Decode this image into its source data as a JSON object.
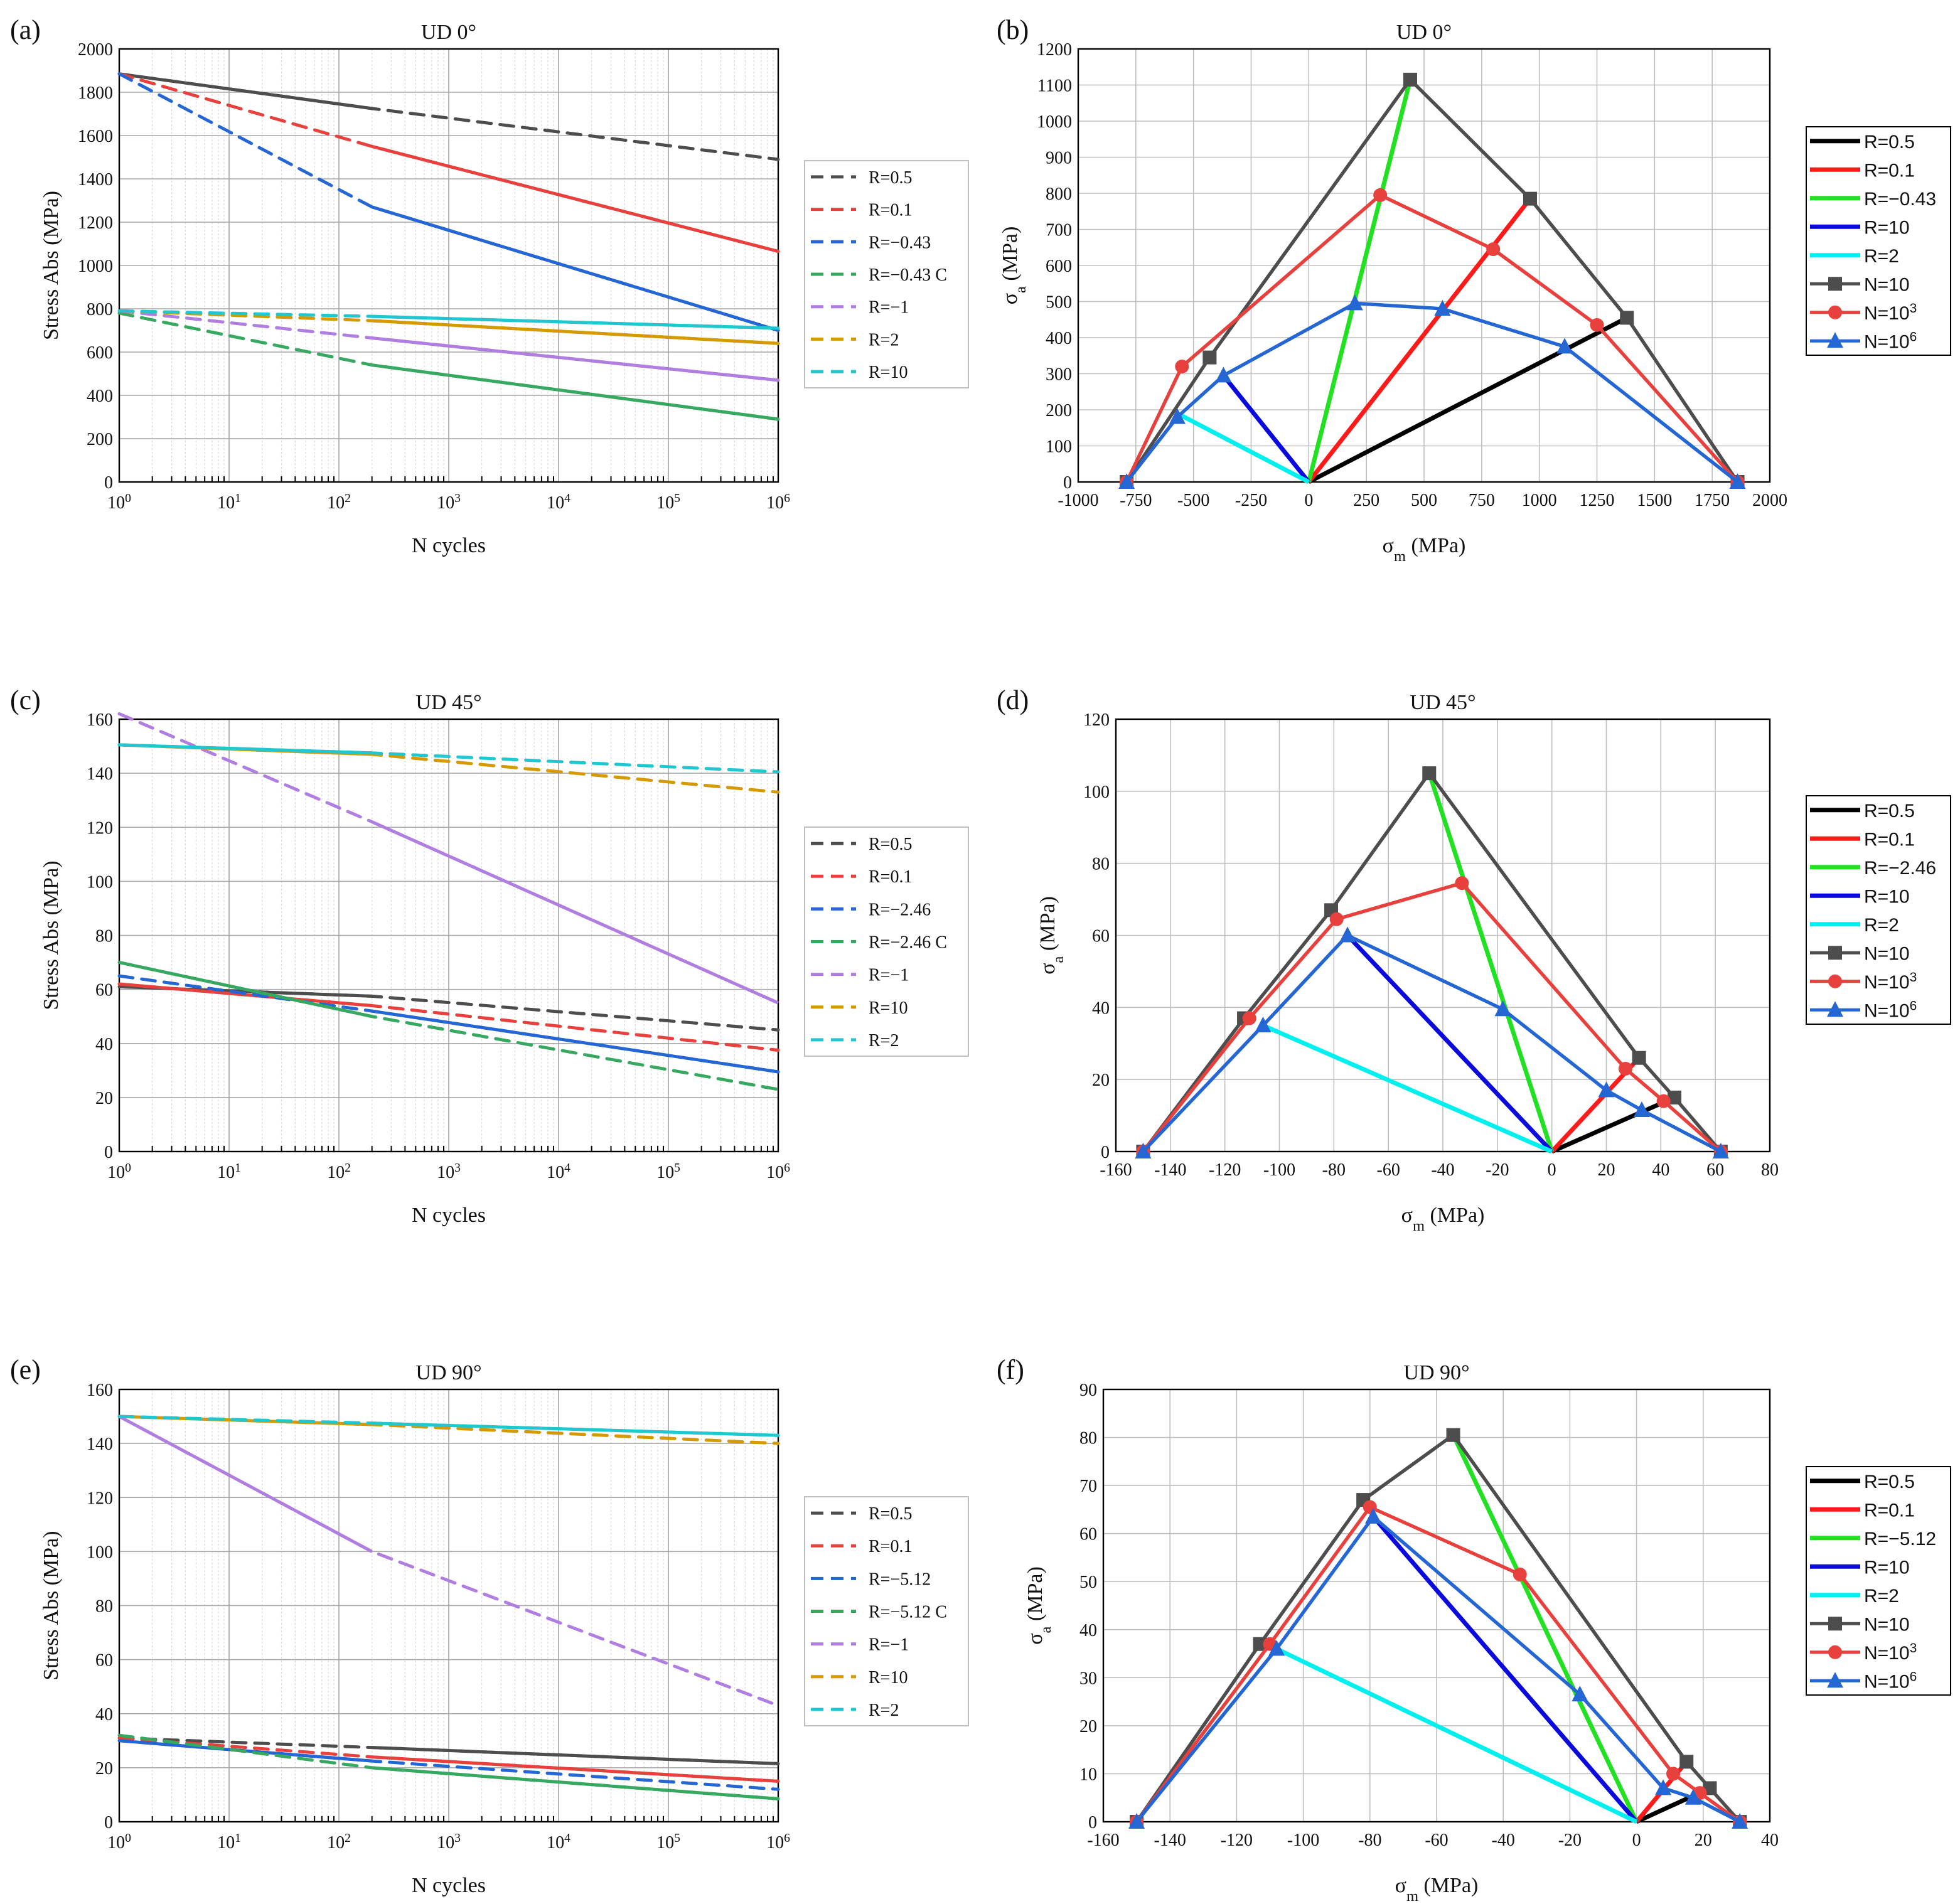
{
  "chart_data": [
    {
      "panel": "(a)",
      "type": "line",
      "title": "UD 0°",
      "xlabel": "N cycles",
      "ylabel": "Stress Abs (MPa)",
      "xscale": "log",
      "xlim": [
        1,
        1000000
      ],
      "ylim": [
        0,
        2000
      ],
      "yticks": [
        0,
        200,
        400,
        600,
        800,
        1000,
        1200,
        1400,
        1600,
        1800,
        2000
      ],
      "xtick_labels": [
        "10^0",
        "10^1",
        "10^2",
        "10^3",
        "10^4",
        "10^5",
        "10^6"
      ],
      "legend": "right",
      "series": [
        {
          "name": "R=0.5",
          "color": "#4d4d4d",
          "x": [
            1,
            200,
            1000000
          ],
          "y": [
            1885,
            1725,
            1490
          ],
          "solid_to": 200
        },
        {
          "name": "R=0.1",
          "color": "#e8403c",
          "x": [
            1,
            200,
            1000000
          ],
          "y": [
            1885,
            1550,
            1065
          ],
          "solid_from": 200
        },
        {
          "name": "R=−0.43",
          "color": "#2466d4",
          "x": [
            1,
            200,
            1000000
          ],
          "y": [
            1885,
            1270,
            700
          ],
          "solid_from": 200
        },
        {
          "name": "R=−0.43 C",
          "color": "#37a860",
          "x": [
            1,
            200,
            1000000
          ],
          "y": [
            780,
            540,
            290
          ],
          "solid_from": 200
        },
        {
          "name": "R=−1",
          "color": "#b07ee0",
          "x": [
            1,
            200,
            1000000
          ],
          "y": [
            790,
            665,
            470
          ],
          "solid_from": 200
        },
        {
          "name": "R=2",
          "color": "#d49a00",
          "x": [
            1,
            200,
            1000000
          ],
          "y": [
            790,
            745,
            640
          ],
          "solid_from": 200
        },
        {
          "name": "R=10",
          "color": "#20c7cf",
          "x": [
            1,
            200,
            1000000
          ],
          "y": [
            790,
            765,
            710
          ],
          "solid_from": 200
        }
      ]
    },
    {
      "panel": "(b)",
      "type": "line",
      "title": "UD 0°",
      "xlabel": "σm (MPa)",
      "ylabel": "σa (MPa)",
      "xlim": [
        -1000,
        2000
      ],
      "ylim": [
        0,
        1200
      ],
      "xticks": [
        -1000,
        -750,
        -500,
        -250,
        0,
        250,
        500,
        750,
        1000,
        1250,
        1500,
        1750,
        2000
      ],
      "yticks": [
        0,
        100,
        200,
        300,
        400,
        500,
        600,
        700,
        800,
        900,
        1000,
        1100,
        1200
      ],
      "legend": "right",
      "series": [
        {
          "name": "R=0.5",
          "color": "#000000",
          "x": [
            0,
            1380
          ],
          "y": [
            0,
            455
          ]
        },
        {
          "name": "R=0.1",
          "color": "#ff1a1a",
          "x": [
            0,
            960
          ],
          "y": [
            0,
            785
          ]
        },
        {
          "name": "R=−0.43",
          "color": "#22e022",
          "x": [
            0,
            440
          ],
          "y": [
            0,
            1115
          ]
        },
        {
          "name": "R=10",
          "color": "#0a0adc",
          "x": [
            0,
            -370
          ],
          "y": [
            0,
            295
          ]
        },
        {
          "name": "R=2",
          "color": "#00f0f0",
          "x": [
            0,
            -570
          ],
          "y": [
            0,
            190
          ]
        },
        {
          "name": "N=10",
          "color": "#4d4d4d",
          "marker": "square",
          "x": [
            -790,
            -430,
            440,
            960,
            1380,
            1860
          ],
          "y": [
            0,
            345,
            1115,
            785,
            455,
            0
          ]
        },
        {
          "name": "N=10^3",
          "color": "#e8403c",
          "marker": "circle",
          "x": [
            -790,
            -550,
            310,
            800,
            1250,
            1860
          ],
          "y": [
            0,
            320,
            795,
            645,
            435,
            0
          ]
        },
        {
          "name": "N=10^6",
          "color": "#2466d4",
          "marker": "triangle",
          "x": [
            -790,
            -570,
            -370,
            200,
            580,
            1110,
            1860
          ],
          "y": [
            0,
            180,
            295,
            495,
            480,
            375,
            0
          ]
        }
      ]
    },
    {
      "panel": "(c)",
      "type": "line",
      "title": "UD 45°",
      "xlabel": "N cycles",
      "ylabel": "Stress Abs (MPa)",
      "xscale": "log",
      "xlim": [
        1,
        1000000
      ],
      "ylim": [
        0,
        160
      ],
      "yticks": [
        0,
        20,
        40,
        60,
        80,
        100,
        120,
        140,
        160
      ],
      "xtick_labels": [
        "10^0",
        "10^1",
        "10^2",
        "10^3",
        "10^4",
        "10^5",
        "10^6"
      ],
      "legend": "right",
      "series": [
        {
          "name": "R=0.5",
          "color": "#4d4d4d",
          "x": [
            1,
            200,
            1000000
          ],
          "y": [
            61,
            57.5,
            45
          ],
          "solid_to": 200
        },
        {
          "name": "R=0.1",
          "color": "#e8403c",
          "x": [
            1,
            200,
            1000000
          ],
          "y": [
            62,
            54,
            37.5
          ],
          "solid_to": 200
        },
        {
          "name": "R=−2.46",
          "color": "#2466d4",
          "x": [
            1,
            200,
            1000000
          ],
          "y": [
            65,
            52,
            29.5
          ],
          "solid_from": 200
        },
        {
          "name": "R=−2.46 C",
          "color": "#37a860",
          "x": [
            1,
            200,
            1000000
          ],
          "y": [
            70,
            50,
            23
          ],
          "solid_to": 200
        },
        {
          "name": "R=−1",
          "color": "#b07ee0",
          "x": [
            1,
            200,
            1000000
          ],
          "y": [
            162,
            122,
            55
          ],
          "solid_from": 200
        },
        {
          "name": "R=10",
          "color": "#d49a00",
          "x": [
            1,
            200,
            1000000
          ],
          "y": [
            150.5,
            147,
            133
          ],
          "solid_to": 200
        },
        {
          "name": "R=2",
          "color": "#20c7cf",
          "x": [
            1,
            200,
            1000000
          ],
          "y": [
            150.5,
            147.5,
            140.5
          ],
          "solid_to": 200
        }
      ]
    },
    {
      "panel": "(d)",
      "type": "line",
      "title": "UD 45°",
      "xlabel": "σm (MPa)",
      "ylabel": "σa (MPa)",
      "xlim": [
        -160,
        80
      ],
      "ylim": [
        0,
        120
      ],
      "xticks": [
        -160,
        -140,
        -120,
        -100,
        -80,
        -60,
        -40,
        -20,
        0,
        20,
        40,
        60,
        80
      ],
      "yticks": [
        0,
        20,
        40,
        60,
        80,
        100,
        120
      ],
      "legend": "right",
      "series": [
        {
          "name": "R=0.5",
          "color": "#000000",
          "x": [
            0,
            45
          ],
          "y": [
            0,
            15
          ]
        },
        {
          "name": "R=0.1",
          "color": "#ff1a1a",
          "x": [
            0,
            32
          ],
          "y": [
            0,
            26
          ]
        },
        {
          "name": "R=−2.46",
          "color": "#22e022",
          "x": [
            0,
            -45
          ],
          "y": [
            0,
            105
          ]
        },
        {
          "name": "R=10",
          "color": "#0a0adc",
          "x": [
            0,
            -75
          ],
          "y": [
            0,
            60
          ]
        },
        {
          "name": "R=2",
          "color": "#00f0f0",
          "x": [
            0,
            -106
          ],
          "y": [
            0,
            35
          ]
        },
        {
          "name": "N=10",
          "color": "#4d4d4d",
          "marker": "square",
          "x": [
            -150,
            -113,
            -81,
            -45,
            32,
            45,
            62
          ],
          "y": [
            0,
            37,
            67,
            105,
            26,
            15,
            0
          ]
        },
        {
          "name": "N=10^3",
          "color": "#e8403c",
          "marker": "circle",
          "x": [
            -150,
            -111,
            -79,
            -33,
            27,
            41,
            62
          ],
          "y": [
            0,
            37,
            64.5,
            74.5,
            23,
            14,
            0
          ]
        },
        {
          "name": "N=10^6",
          "color": "#2466d4",
          "marker": "triangle",
          "x": [
            -150,
            -106,
            -75,
            -18,
            20,
            33,
            62
          ],
          "y": [
            0,
            35,
            60,
            39.5,
            17,
            11.5,
            0
          ]
        }
      ]
    },
    {
      "panel": "(e)",
      "type": "line",
      "title": "UD 90°",
      "xlabel": "N cycles",
      "ylabel": "Stress Abs (MPa)",
      "xscale": "log",
      "xlim": [
        1,
        1000000
      ],
      "ylim": [
        0,
        160
      ],
      "yticks": [
        0,
        20,
        40,
        60,
        80,
        100,
        120,
        140,
        160
      ],
      "xtick_labels": [
        "10^0",
        "10^1",
        "10^2",
        "10^3",
        "10^4",
        "10^5",
        "10^6"
      ],
      "legend": "right",
      "series": [
        {
          "name": "R=0.5",
          "color": "#4d4d4d",
          "x": [
            1,
            200,
            1000000
          ],
          "y": [
            31,
            27.5,
            21.5
          ],
          "solid_from": 200
        },
        {
          "name": "R=0.1",
          "color": "#e8403c",
          "x": [
            1,
            200,
            1000000
          ],
          "y": [
            31,
            24,
            15
          ],
          "solid_from": 200
        },
        {
          "name": "R=−5.12",
          "color": "#2466d4",
          "x": [
            1,
            200,
            1000000
          ],
          "y": [
            30,
            22.5,
            12
          ],
          "solid_to": 200
        },
        {
          "name": "R=−5.12 C",
          "color": "#37a860",
          "x": [
            1,
            200,
            1000000
          ],
          "y": [
            32,
            20,
            8.5
          ],
          "solid_from": 200
        },
        {
          "name": "R=−1",
          "color": "#b07ee0",
          "x": [
            1,
            200,
            1000000
          ],
          "y": [
            150,
            100,
            43
          ],
          "solid_to": 200
        },
        {
          "name": "R=10",
          "color": "#d49a00",
          "x": [
            1,
            200,
            1000000
          ],
          "y": [
            150,
            147,
            140
          ],
          "solid_to": 200
        },
        {
          "name": "R=2",
          "color": "#20c7cf",
          "x": [
            1,
            200,
            1000000
          ],
          "y": [
            150,
            147.5,
            143
          ],
          "solid_from": 200
        }
      ]
    },
    {
      "panel": "(f)",
      "type": "line",
      "title": "UD 90°",
      "xlabel": "σm (MPa)",
      "ylabel": "σa (MPa)",
      "xlim": [
        -160,
        40
      ],
      "ylim": [
        0,
        90
      ],
      "xticks": [
        -160,
        -140,
        -120,
        -100,
        -80,
        -60,
        -40,
        -20,
        0,
        20,
        40
      ],
      "yticks": [
        0,
        10,
        20,
        30,
        40,
        50,
        60,
        70,
        80,
        90
      ],
      "legend": "right",
      "series": [
        {
          "name": "R=0.5",
          "color": "#000000",
          "x": [
            0,
            22
          ],
          "y": [
            0,
            7
          ]
        },
        {
          "name": "R=0.1",
          "color": "#ff1a1a",
          "x": [
            0,
            15
          ],
          "y": [
            0,
            12.5
          ]
        },
        {
          "name": "R=−5.12",
          "color": "#22e022",
          "x": [
            0,
            -55
          ],
          "y": [
            0,
            80.5
          ]
        },
        {
          "name": "R=10",
          "color": "#0a0adc",
          "x": [
            0,
            -79
          ],
          "y": [
            0,
            63.5
          ]
        },
        {
          "name": "R=2",
          "color": "#00f0f0",
          "x": [
            0,
            -108
          ],
          "y": [
            0,
            36
          ]
        },
        {
          "name": "N=10",
          "color": "#4d4d4d",
          "marker": "square",
          "x": [
            -150,
            -113,
            -82,
            -55,
            15,
            22,
            31
          ],
          "y": [
            0,
            37,
            67,
            80.5,
            12.5,
            7,
            0
          ]
        },
        {
          "name": "N=10^3",
          "color": "#e8403c",
          "marker": "circle",
          "x": [
            -150,
            -110,
            -80,
            -35,
            11,
            19,
            31
          ],
          "y": [
            0,
            37,
            65.5,
            51.5,
            10,
            6,
            0
          ]
        },
        {
          "name": "N=10^6",
          "color": "#2466d4",
          "marker": "triangle",
          "x": [
            -150,
            -108,
            -79,
            -17,
            8,
            17,
            31
          ],
          "y": [
            0,
            36,
            63.5,
            26.5,
            7,
            5,
            0
          ]
        }
      ]
    }
  ]
}
